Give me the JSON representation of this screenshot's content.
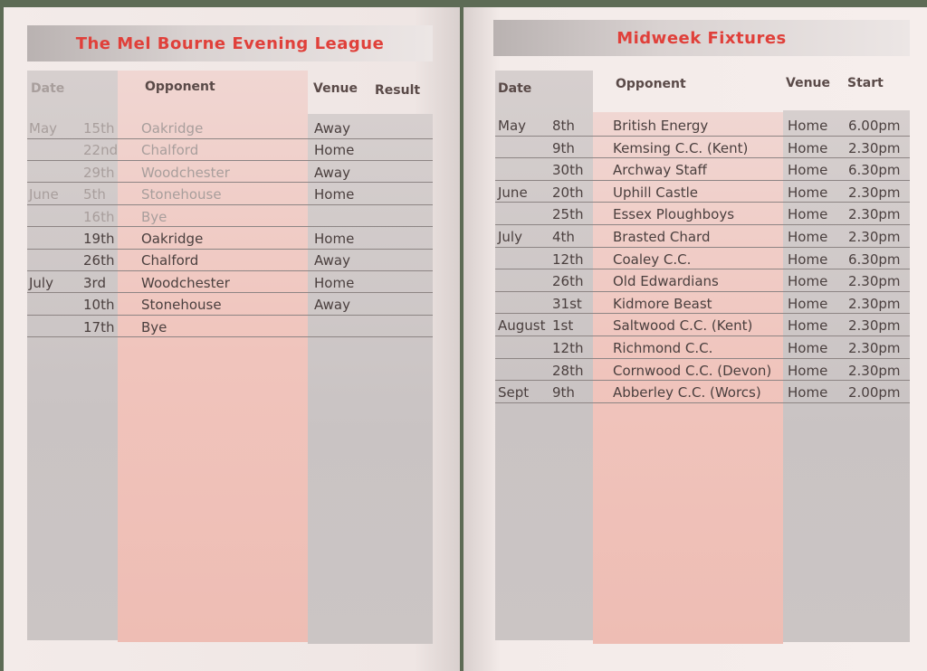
{
  "left": {
    "title": "The Mel Bourne Evening League",
    "headers": {
      "date": "Date",
      "opponent": "Opponent",
      "venue": "Venue",
      "result": "Result"
    },
    "rows": [
      {
        "month": "May",
        "day": "15th",
        "opponent": "Oakridge",
        "venue": "Away"
      },
      {
        "month": "",
        "day": "22nd",
        "opponent": "Chalford",
        "venue": "Home"
      },
      {
        "month": "",
        "day": "29th",
        "opponent": "Woodchester",
        "venue": "Away"
      },
      {
        "month": "June",
        "day": "5th",
        "opponent": "Stonehouse",
        "venue": "Home"
      },
      {
        "month": "",
        "day": "16th",
        "opponent": "Bye",
        "venue": ""
      },
      {
        "month": "",
        "day": "19th",
        "opponent": "Oakridge",
        "venue": "Home"
      },
      {
        "month": "",
        "day": "26th",
        "opponent": "Chalford",
        "venue": "Away"
      },
      {
        "month": "July",
        "day": "3rd",
        "opponent": "Woodchester",
        "venue": "Home"
      },
      {
        "month": "",
        "day": "10th",
        "opponent": "Stonehouse",
        "venue": "Away"
      },
      {
        "month": "",
        "day": "17th",
        "opponent": "Bye",
        "venue": ""
      }
    ]
  },
  "right": {
    "title": "Midweek Fixtures",
    "headers": {
      "date": "Date",
      "opponent": "Opponent",
      "venue": "Venue",
      "start": "Start"
    },
    "rows": [
      {
        "month": "May",
        "day": "8th",
        "opponent": "British Energy",
        "venue": "Home",
        "start": "6.00pm"
      },
      {
        "month": "",
        "day": "9th",
        "opponent": "Kemsing C.C. (Kent)",
        "venue": "Home",
        "start": "2.30pm"
      },
      {
        "month": "",
        "day": "30th",
        "opponent": "Archway Staff",
        "venue": "Home",
        "start": "6.30pm"
      },
      {
        "month": "June",
        "day": "20th",
        "opponent": "Uphill Castle",
        "venue": "Home",
        "start": "2.30pm"
      },
      {
        "month": "",
        "day": "25th",
        "opponent": "Essex Ploughboys",
        "venue": "Home",
        "start": "2.30pm"
      },
      {
        "month": "July",
        "day": "4th",
        "opponent": "Brasted Chard",
        "venue": "Home",
        "start": "2.30pm"
      },
      {
        "month": "",
        "day": "12th",
        "opponent": "Coaley C.C.",
        "venue": "Home",
        "start": "6.30pm"
      },
      {
        "month": "",
        "day": "26th",
        "opponent": "Old Edwardians",
        "venue": "Home",
        "start": "2.30pm"
      },
      {
        "month": "",
        "day": "31st",
        "opponent": "Kidmore Beast",
        "venue": "Home",
        "start": "2.30pm"
      },
      {
        "month": "August",
        "day": "1st",
        "opponent": "Saltwood C.C. (Kent)",
        "venue": "Home",
        "start": "2.30pm"
      },
      {
        "month": "",
        "day": "12th",
        "opponent": "Richmond C.C.",
        "venue": "Home",
        "start": "2.30pm"
      },
      {
        "month": "",
        "day": "28th",
        "opponent": "Cornwood C.C. (Devon)",
        "venue": "Home",
        "start": "2.30pm"
      },
      {
        "month": "Sept",
        "day": "9th",
        "opponent": "Abberley C.C. (Worcs)",
        "venue": "Home",
        "start": "2.00pm"
      }
    ]
  }
}
